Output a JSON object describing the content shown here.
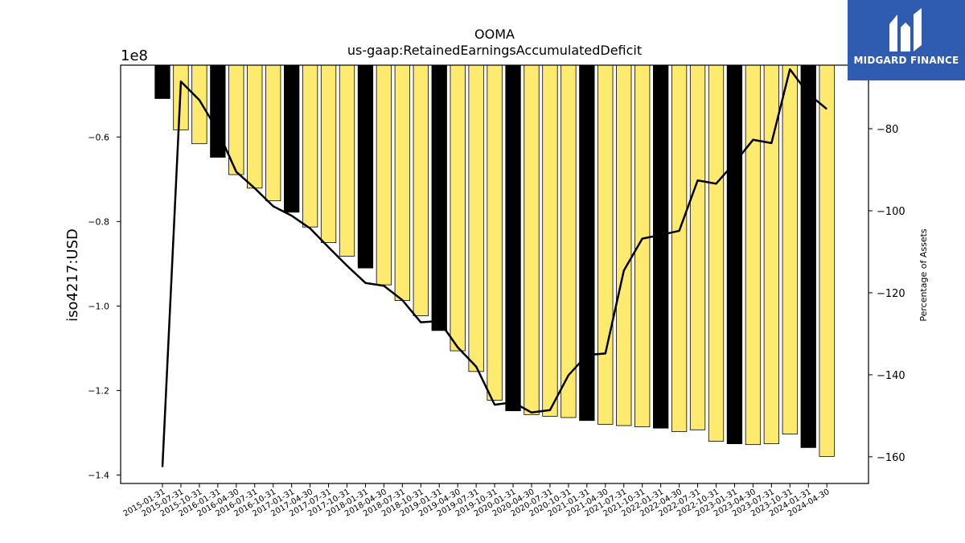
{
  "chart_data": {
    "type": "bar",
    "title": "OOMA",
    "subtitle": "us-gaap:RetainedEarningsAccumulatedDeficit",
    "ylabel": "iso4217:USD",
    "y_scale_label": "1e8",
    "y2label": "Percentage of Assets",
    "ylim": [
      -1.42,
      -0.43
    ],
    "y2lim": [
      -166.5,
      -64.5
    ],
    "yticks": [
      -0.6,
      -0.8,
      -1.0,
      -1.2,
      -1.4
    ],
    "ytick_labels": [
      "−0.6",
      "−0.8",
      "−1.0",
      "−1.2",
      "−1.4"
    ],
    "y2ticks": [
      -80,
      -100,
      -120,
      -140,
      -160
    ],
    "y2tick_labels": [
      "−80",
      "−100",
      "−120",
      "−140",
      "−160"
    ],
    "grid": false,
    "legend": "none",
    "categories": [
      "2015-01-31",
      "2015-07-31",
      "2015-10-31",
      "2016-01-31",
      "2016-04-30",
      "2016-07-31",
      "2016-10-31",
      "2017-01-31",
      "2017-04-30",
      "2017-07-31",
      "2017-10-31",
      "2018-01-31",
      "2018-04-30",
      "2018-07-31",
      "2018-10-31",
      "2019-01-31",
      "2019-04-30",
      "2019-07-31",
      "2019-10-31",
      "2020-01-31",
      "2020-04-30",
      "2020-07-31",
      "2020-10-31",
      "2021-01-31",
      "2021-04-30",
      "2021-07-31",
      "2021-10-31",
      "2022-01-31",
      "2022-04-30",
      "2022-07-31",
      "2022-10-31",
      "2023-01-31",
      "2023-04-30",
      "2023-07-31",
      "2023-10-31",
      "2024-01-31",
      "2024-04-30"
    ],
    "series": [
      {
        "axis": "left",
        "type": "bar",
        "values": [
          -0.509,
          -0.583,
          -0.616,
          -0.648,
          -0.689,
          -0.721,
          -0.751,
          -0.778,
          -0.813,
          -0.85,
          -0.882,
          -0.91,
          -0.95,
          -0.987,
          -1.023,
          -1.058,
          -1.106,
          -1.155,
          -1.223,
          -1.248,
          -1.257,
          -1.261,
          -1.264,
          -1.271,
          -1.28,
          -1.283,
          -1.286,
          -1.289,
          -1.297,
          -1.293,
          -1.32,
          -1.326,
          -1.328,
          -1.326,
          -1.303,
          -1.335,
          -1.356
        ],
        "colors": [
          "#000000",
          "#ffea70",
          "#ffea70",
          "#000000",
          "#ffea70",
          "#ffea70",
          "#ffea70",
          "#000000",
          "#ffea70",
          "#ffea70",
          "#ffea70",
          "#000000",
          "#ffea70",
          "#ffea70",
          "#ffea70",
          "#000000",
          "#ffea70",
          "#ffea70",
          "#ffea70",
          "#000000",
          "#ffea70",
          "#ffea70",
          "#ffea70",
          "#000000",
          "#ffea70",
          "#ffea70",
          "#ffea70",
          "#000000",
          "#ffea70",
          "#ffea70",
          "#ffea70",
          "#000000",
          "#ffea70",
          "#ffea70",
          "#ffea70",
          "#000000",
          "#ffea70"
        ]
      },
      {
        "axis": "right",
        "type": "line",
        "color": "#000000",
        "values": [
          -162.5,
          -68.5,
          -73.0,
          -80.5,
          -90.5,
          -94.5,
          -98.9,
          -101.2,
          -104.3,
          -108.9,
          -113.4,
          -117.6,
          -118.3,
          -121.8,
          -127.2,
          -126.9,
          -133.3,
          -138.0,
          -147.3,
          -146.7,
          -149.2,
          -148.6,
          -140.1,
          -135.2,
          -134.8,
          -114.6,
          -106.8,
          -105.9,
          -104.9,
          -92.6,
          -93.4,
          -88.3,
          -82.7,
          -83.5,
          -65.5,
          -71.5,
          -75.2
        ]
      }
    ]
  },
  "logo": {
    "text": "MIDGARD FINANCE",
    "bg_color": "#2f5bb0"
  }
}
